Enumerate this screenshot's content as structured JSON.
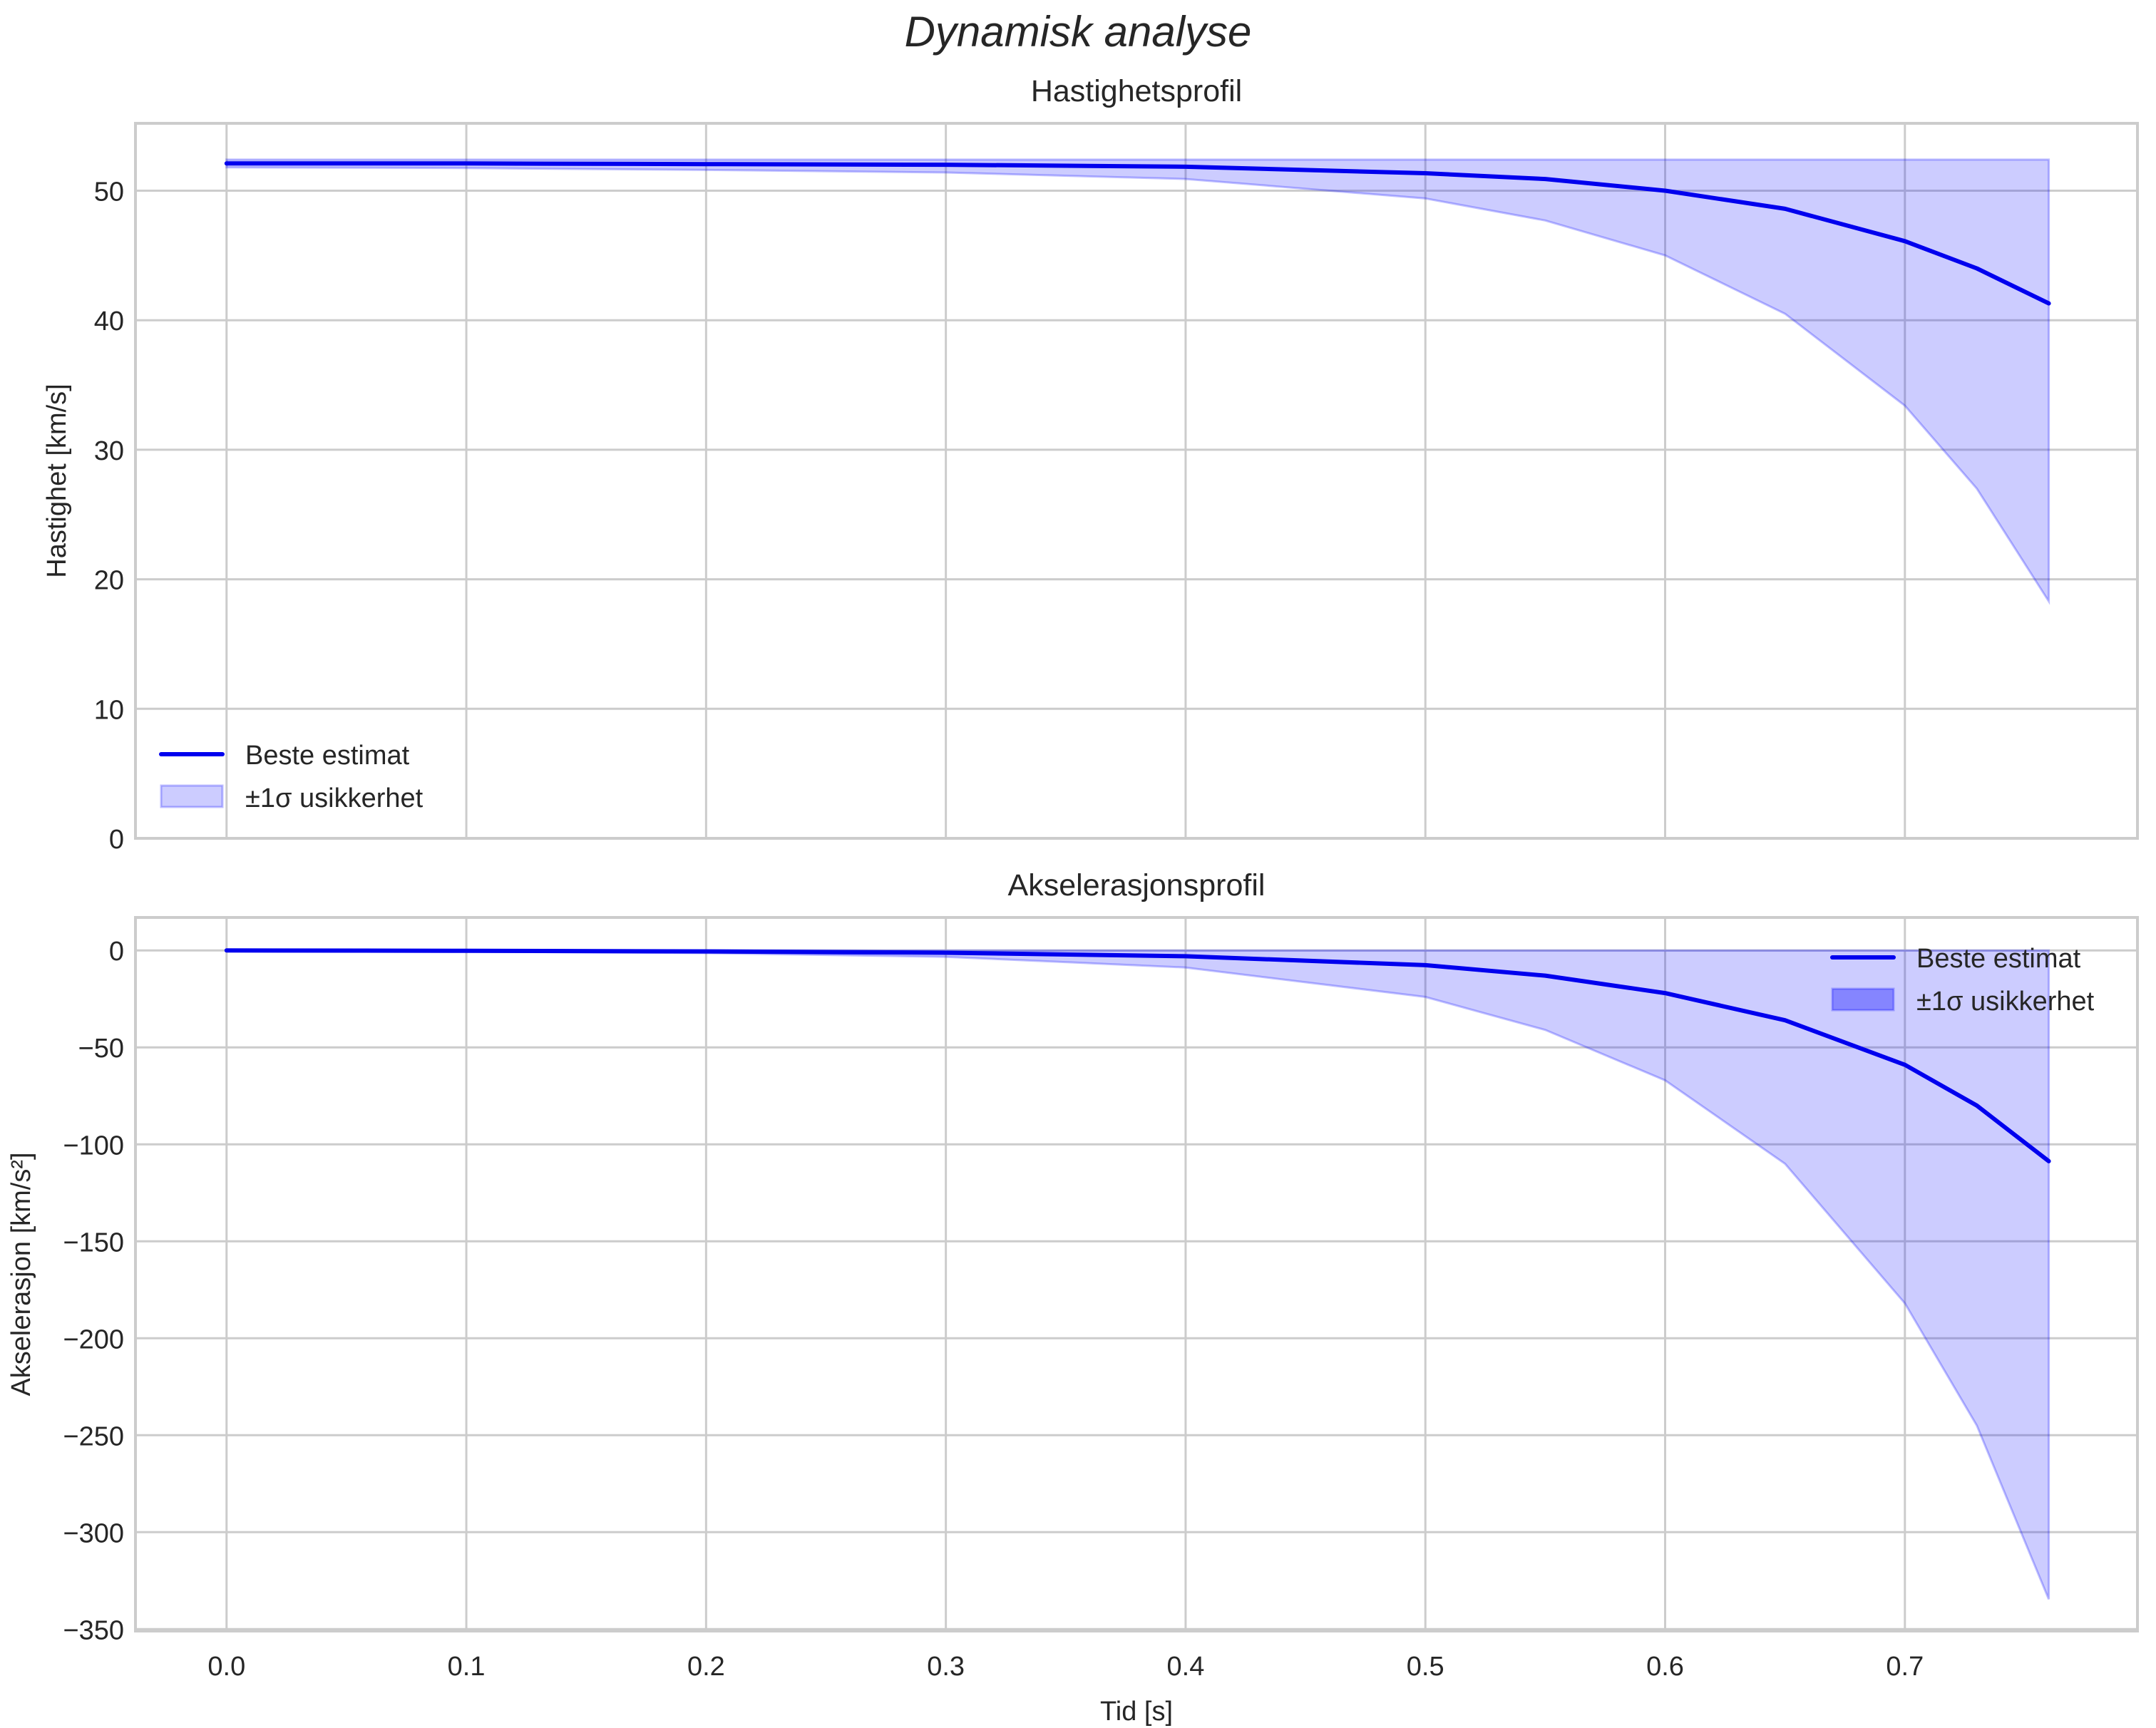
{
  "figure": {
    "suptitle": "Dynamisk analyse",
    "colors": {
      "line": "#0000ee",
      "band_fill": "#0000ff",
      "band_alpha": 0.2,
      "grid": "#cccccc",
      "spine": "#cccccc",
      "text": "#262626"
    }
  },
  "chart_data": [
    {
      "type": "line",
      "title": "Hastighetsprofil",
      "xlabel": "",
      "ylabel": "Hastighet [km/s]",
      "xlim": [
        -0.038,
        0.797
      ],
      "ylim": [
        0,
        55.2
      ],
      "xticks": [
        0.0,
        0.1,
        0.2,
        0.3,
        0.4,
        0.5,
        0.6,
        0.7
      ],
      "xtick_labels": [
        "",
        "",
        "",
        "",
        "",
        "",
        "",
        ""
      ],
      "yticks": [
        0,
        10,
        20,
        30,
        40,
        50
      ],
      "ytick_labels": [
        "0",
        "10",
        "20",
        "30",
        "40",
        "50"
      ],
      "grid": true,
      "legend": {
        "position": "lower left",
        "entries": [
          "Beste estimat",
          "±1σ usikkerhet"
        ]
      },
      "x": [
        0.0,
        0.1,
        0.2,
        0.3,
        0.4,
        0.5,
        0.55,
        0.6,
        0.65,
        0.7,
        0.73,
        0.76
      ],
      "series": [
        {
          "name": "Beste estimat",
          "kind": "line",
          "values": [
            52.1,
            52.1,
            52.05,
            52.0,
            51.85,
            51.35,
            50.9,
            50.0,
            48.6,
            46.1,
            44.0,
            41.3
          ]
        },
        {
          "name": "±1σ usikkerhet",
          "kind": "band",
          "upper": [
            52.4,
            52.4,
            52.4,
            52.4,
            52.4,
            52.4,
            52.4,
            52.4,
            52.4,
            52.4,
            52.4,
            52.4
          ],
          "lower": [
            51.8,
            51.75,
            51.6,
            51.4,
            50.9,
            49.4,
            47.7,
            45.0,
            40.5,
            33.4,
            27.0,
            18.3
          ]
        }
      ]
    },
    {
      "type": "line",
      "title": "Akselerasjonsprofil",
      "xlabel": "Tid [s]",
      "ylabel": "Akselerasjon [km/s²]",
      "xlim": [
        -0.038,
        0.797
      ],
      "ylim": [
        -351,
        17
      ],
      "xticks": [
        0.0,
        0.1,
        0.2,
        0.3,
        0.4,
        0.5,
        0.6,
        0.7
      ],
      "xtick_labels": [
        "0.0",
        "0.1",
        "0.2",
        "0.3",
        "0.4",
        "0.5",
        "0.6",
        "0.7"
      ],
      "yticks": [
        0,
        -50,
        -100,
        -150,
        -200,
        -250,
        -300,
        -350
      ],
      "ytick_labels": [
        "0",
        "−50",
        "−100",
        "−150",
        "−200",
        "−250",
        "−300",
        "−350"
      ],
      "grid": true,
      "legend": {
        "position": "upper right",
        "entries": [
          "Beste estimat",
          "±1σ usikkerhet"
        ]
      },
      "x": [
        0.0,
        0.1,
        0.2,
        0.3,
        0.4,
        0.5,
        0.55,
        0.6,
        0.65,
        0.7,
        0.73,
        0.76
      ],
      "series": [
        {
          "name": "Beste estimat",
          "kind": "line",
          "values": [
            0.0,
            -0.2,
            -0.5,
            -1.2,
            -3.0,
            -7.6,
            -13.0,
            -22.0,
            -36.0,
            -59.0,
            -80.0,
            -108.7
          ]
        },
        {
          "name": "±1σ usikkerhet",
          "kind": "band",
          "upper": [
            0,
            0,
            0,
            0,
            0,
            0,
            0,
            0,
            0,
            0,
            0,
            0
          ],
          "lower": [
            -0.2,
            -0.6,
            -1.4,
            -3.3,
            -8.8,
            -24.0,
            -41.0,
            -67.0,
            -110.0,
            -182.0,
            -245.0,
            -334.6
          ]
        }
      ]
    }
  ]
}
